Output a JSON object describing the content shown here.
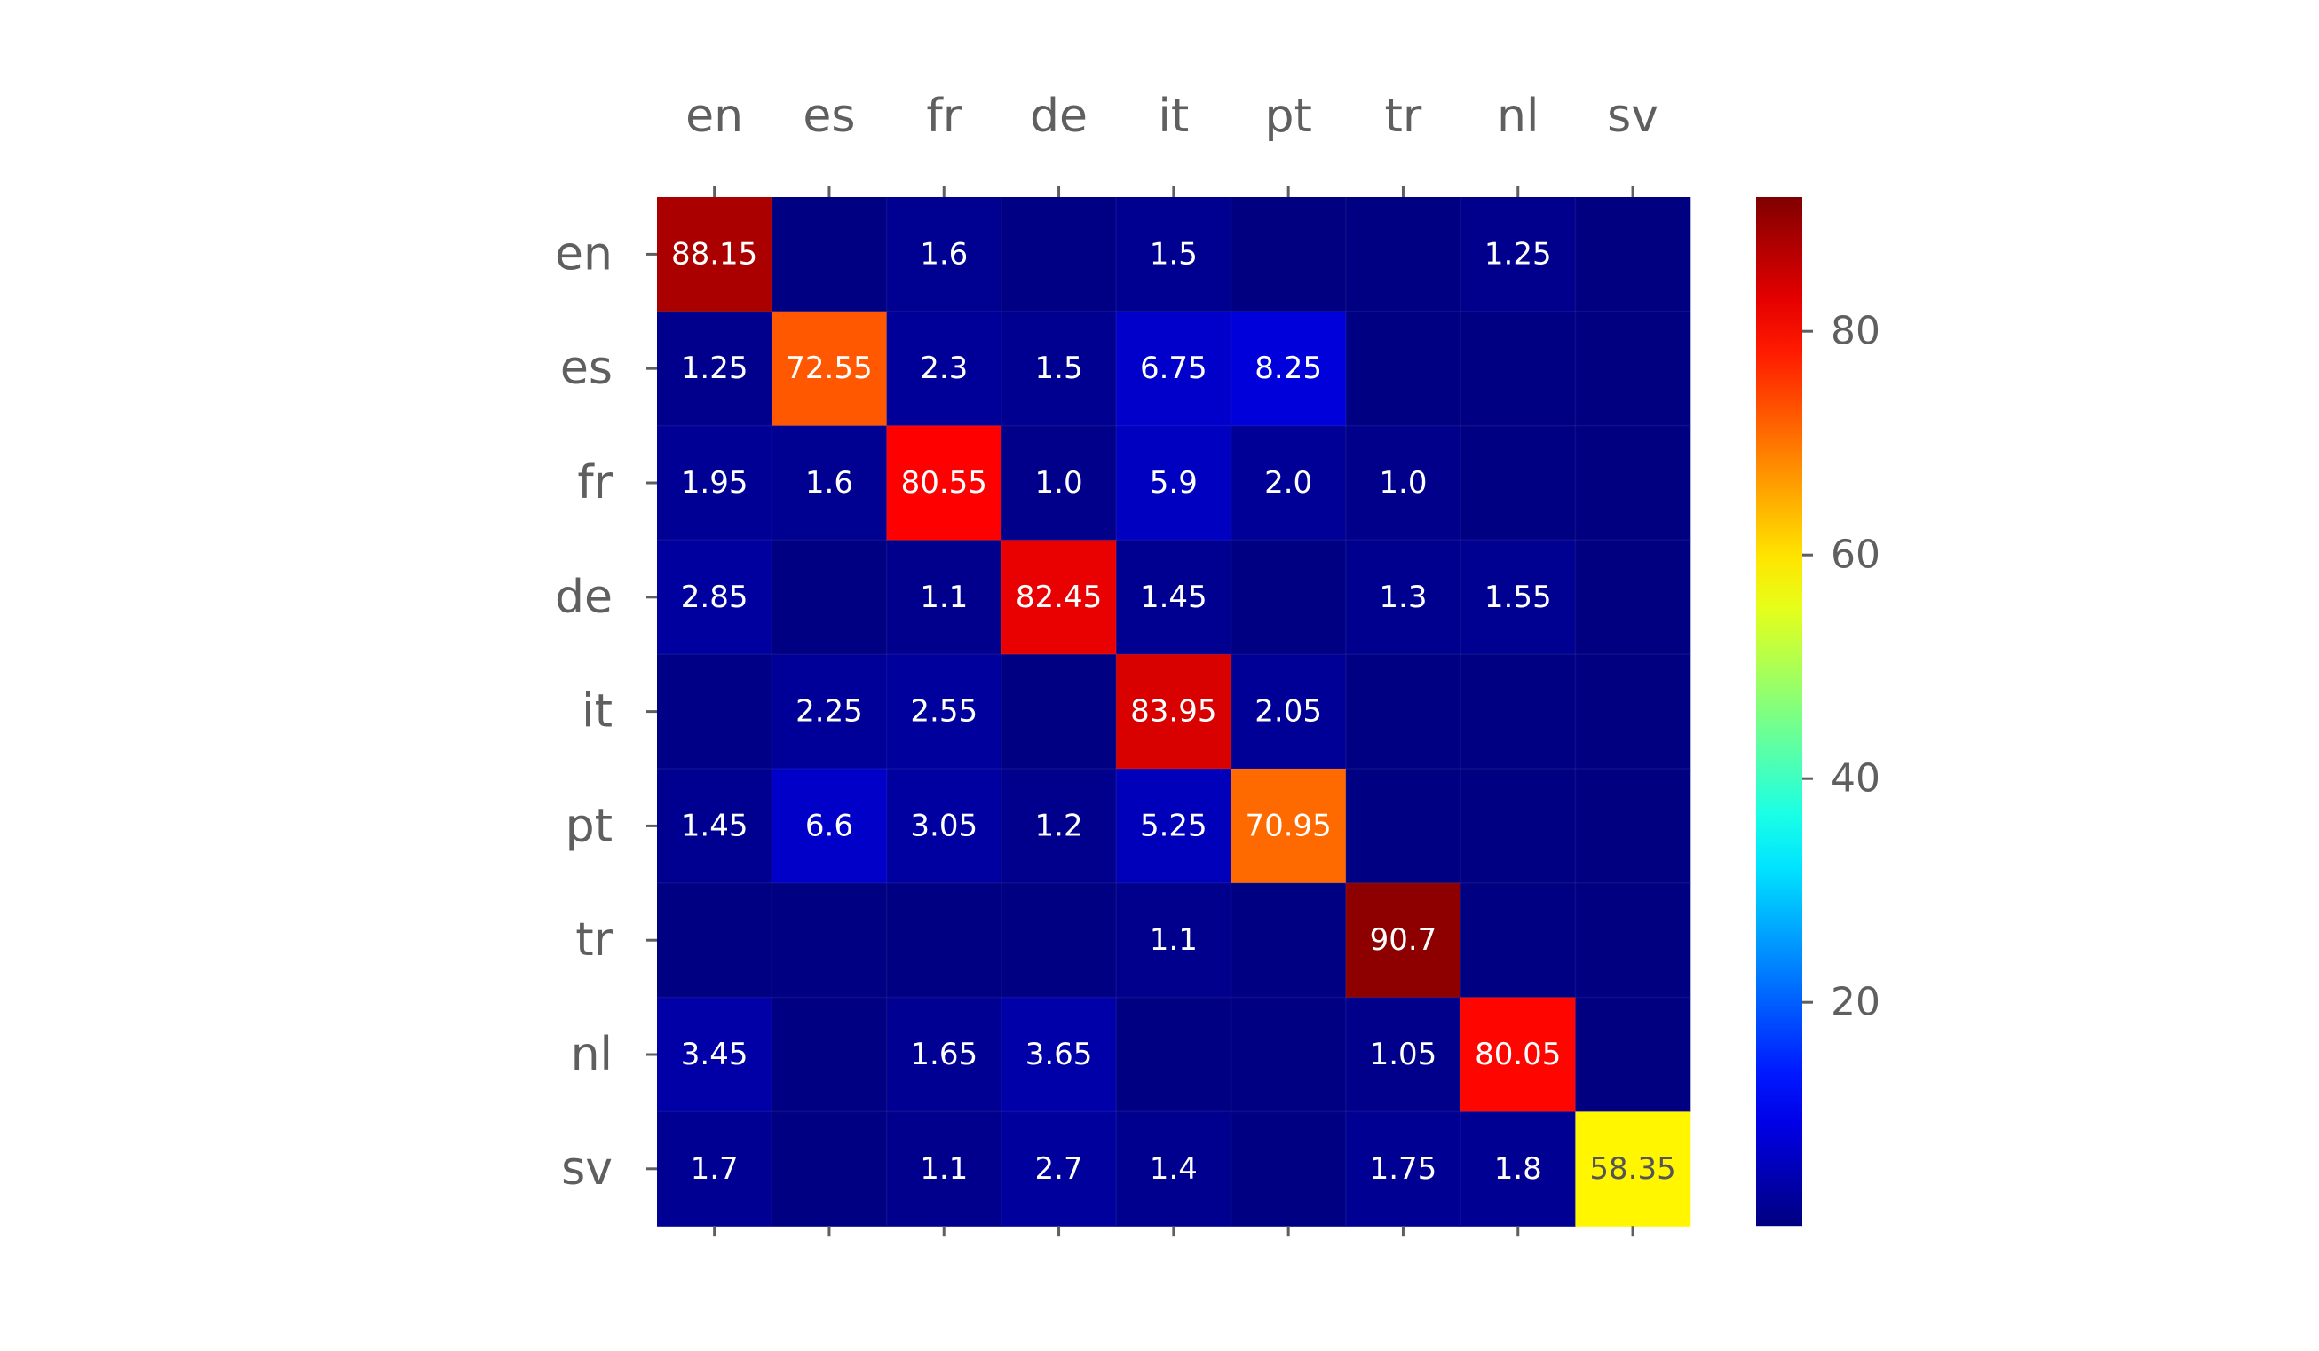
{
  "chart_data": {
    "type": "heatmap",
    "title": "",
    "xlabel": "",
    "ylabel": "",
    "x_categories": [
      "en",
      "es",
      "fr",
      "de",
      "it",
      "pt",
      "tr",
      "nl",
      "sv"
    ],
    "y_categories": [
      "en",
      "es",
      "fr",
      "de",
      "it",
      "pt",
      "tr",
      "nl",
      "sv"
    ],
    "colormap": "jet",
    "vmin": 0,
    "vmax": 92,
    "values": [
      [
        88.15,
        0.2,
        1.6,
        0.5,
        1.5,
        0.1,
        0.2,
        1.25,
        0.1
      ],
      [
        1.25,
        72.55,
        2.3,
        1.5,
        6.75,
        8.25,
        0.2,
        0.2,
        0.1
      ],
      [
        1.95,
        1.6,
        80.55,
        1.0,
        5.9,
        2.0,
        1.0,
        0.3,
        0.1
      ],
      [
        2.85,
        0.2,
        1.1,
        82.45,
        1.45,
        0.3,
        1.3,
        1.55,
        0.1
      ],
      [
        0.6,
        2.25,
        2.55,
        0.2,
        83.95,
        2.05,
        0.2,
        0.2,
        0.1
      ],
      [
        1.45,
        6.6,
        3.05,
        1.2,
        5.25,
        70.95,
        0.2,
        0.2,
        0.1
      ],
      [
        0.2,
        0.2,
        0.2,
        0.2,
        1.1,
        0.2,
        90.7,
        0.3,
        0.1
      ],
      [
        3.45,
        0.2,
        1.65,
        3.65,
        0.3,
        0.2,
        1.05,
        80.05,
        0.1
      ],
      [
        1.7,
        0.3,
        1.1,
        2.7,
        1.4,
        0.3,
        1.75,
        1.8,
        58.35
      ]
    ],
    "cell_labels": [
      [
        "88.15",
        "",
        "1.6",
        "",
        "1.5",
        "",
        "",
        "1.25",
        ""
      ],
      [
        "1.25",
        "72.55",
        "2.3",
        "1.5",
        "6.75",
        "8.25",
        "",
        "",
        ""
      ],
      [
        "1.95",
        "1.6",
        "80.55",
        "1.0",
        "5.9",
        "2.0",
        "1.0",
        "",
        ""
      ],
      [
        "2.85",
        "",
        "1.1",
        "82.45",
        "1.45",
        "",
        "1.3",
        "1.55",
        ""
      ],
      [
        "",
        "2.25",
        "2.55",
        "",
        "83.95",
        "2.05",
        "",
        "",
        ""
      ],
      [
        "1.45",
        "6.6",
        "3.05",
        "1.2",
        "5.25",
        "70.95",
        "",
        "",
        ""
      ],
      [
        "",
        "",
        "",
        "",
        "1.1",
        "",
        "90.7",
        "",
        ""
      ],
      [
        "3.45",
        "",
        "1.65",
        "3.65",
        "",
        "",
        "1.05",
        "80.05",
        ""
      ],
      [
        "1.7",
        "",
        "1.1",
        "2.7",
        "1.4",
        "",
        "1.75",
        "1.8",
        "58.35"
      ]
    ],
    "colorbar": {
      "ticks": [
        20,
        40,
        60,
        80
      ],
      "tick_labels": [
        "20",
        "40",
        "60",
        "80"
      ]
    },
    "x_axis_position": "top",
    "grid": false
  }
}
